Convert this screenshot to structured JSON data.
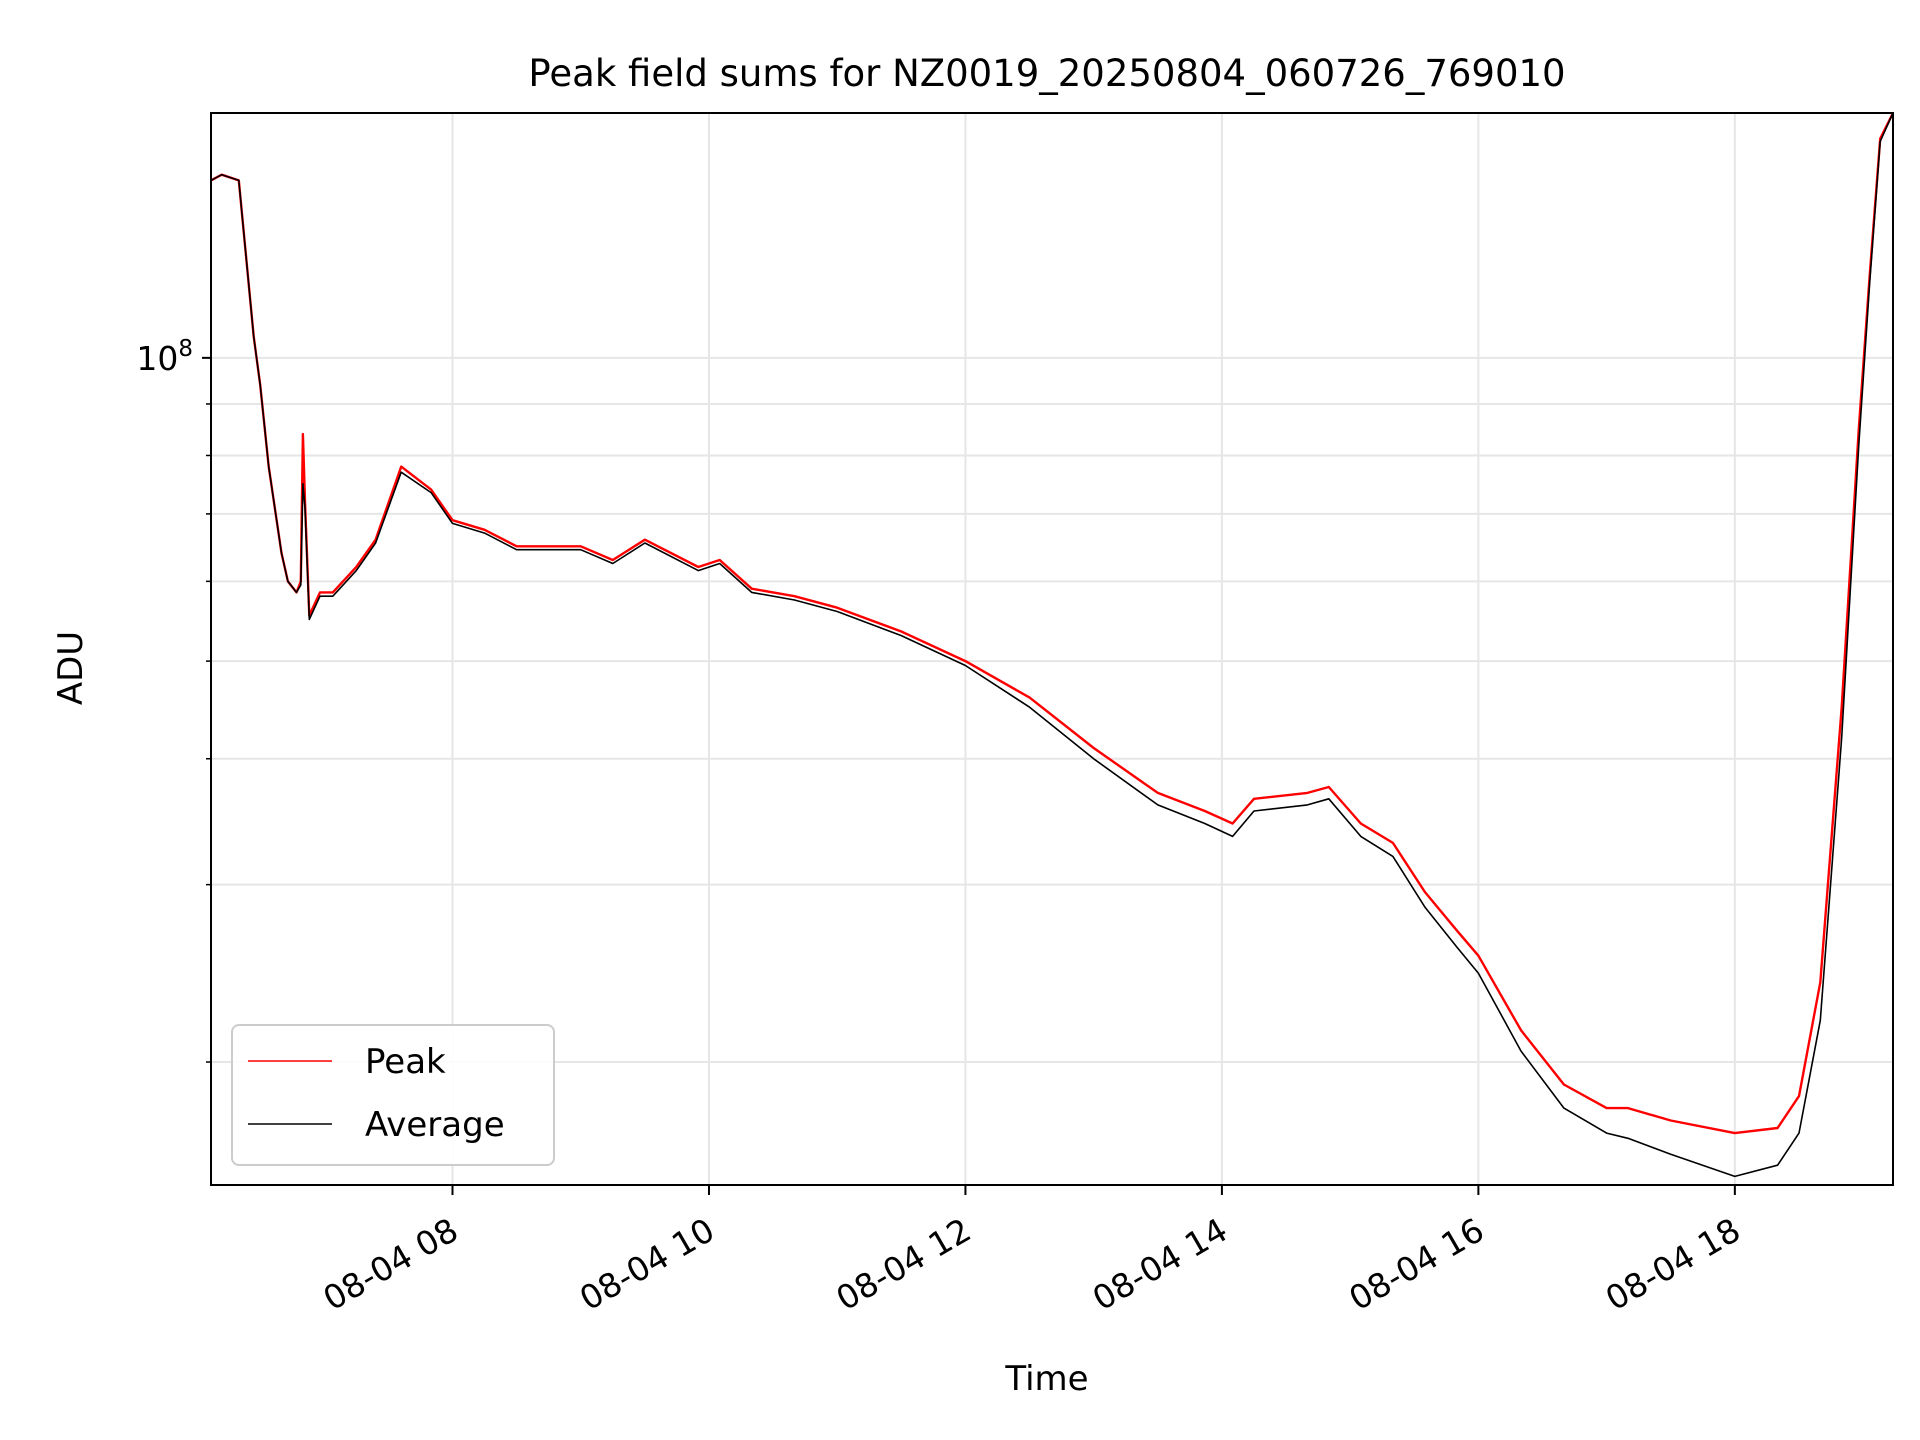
{
  "chart_data": {
    "type": "line",
    "title": "Peak field sums for NZ0019_20250804_060726_769010",
    "xlabel": "Time",
    "ylabel": "ADU",
    "yscale": "log",
    "grid": true,
    "legend_position": "lower-left",
    "x_ticks": [
      "08-04 08",
      "08-04 10",
      "08-04 12",
      "08-04 14",
      "08-04 16",
      "08-04 18"
    ],
    "y_major_tick": "10^8",
    "xlim": [
      "2025-08-04 06:07",
      "2025-08-04 19:14"
    ],
    "ylim": [
      15100000,
      175000000
    ],
    "series": [
      {
        "name": "Peak",
        "color": "#ff0000",
        "points": [
          [
            "2025-08-04 06:07",
            150000000
          ],
          [
            "2025-08-04 06:12",
            152000000
          ],
          [
            "2025-08-04 06:20",
            150000000
          ],
          [
            "2025-08-04 06:27",
            105000000
          ],
          [
            "2025-08-04 06:30",
            94000000
          ],
          [
            "2025-08-04 06:34",
            78000000
          ],
          [
            "2025-08-04 06:40",
            64000000
          ],
          [
            "2025-08-04 06:43",
            60000000
          ],
          [
            "2025-08-04 06:47",
            58500000
          ],
          [
            "2025-08-04 06:49",
            60000000
          ],
          [
            "2025-08-04 06:50",
            84000000
          ],
          [
            "2025-08-04 06:51",
            72000000
          ],
          [
            "2025-08-04 06:53",
            55500000
          ],
          [
            "2025-08-04 06:58",
            58500000
          ],
          [
            "2025-08-04 07:04",
            58500000
          ],
          [
            "2025-08-04 07:15",
            62000000
          ],
          [
            "2025-08-04 07:24",
            66000000
          ],
          [
            "2025-08-04 07:36",
            78000000
          ],
          [
            "2025-08-04 07:50",
            74000000
          ],
          [
            "2025-08-04 08:00",
            69000000
          ],
          [
            "2025-08-04 08:15",
            67500000
          ],
          [
            "2025-08-04 08:30",
            65000000
          ],
          [
            "2025-08-04 09:00",
            65000000
          ],
          [
            "2025-08-04 09:15",
            63000000
          ],
          [
            "2025-08-04 09:30",
            66000000
          ],
          [
            "2025-08-04 09:55",
            62000000
          ],
          [
            "2025-08-04 10:05",
            63000000
          ],
          [
            "2025-08-04 10:20",
            59000000
          ],
          [
            "2025-08-04 10:40",
            58000000
          ],
          [
            "2025-08-04 11:00",
            56500000
          ],
          [
            "2025-08-04 11:30",
            53500000
          ],
          [
            "2025-08-04 12:00",
            50000000
          ],
          [
            "2025-08-04 12:30",
            46000000
          ],
          [
            "2025-08-04 13:00",
            41000000
          ],
          [
            "2025-08-04 13:30",
            37000000
          ],
          [
            "2025-08-04 13:52",
            35500000
          ],
          [
            "2025-08-04 14:05",
            34500000
          ],
          [
            "2025-08-04 14:15",
            36500000
          ],
          [
            "2025-08-04 14:40",
            37000000
          ],
          [
            "2025-08-04 14:50",
            37500000
          ],
          [
            "2025-08-04 15:05",
            34500000
          ],
          [
            "2025-08-04 15:20",
            33000000
          ],
          [
            "2025-08-04 15:35",
            29500000
          ],
          [
            "2025-08-04 15:50",
            27000000
          ],
          [
            "2025-08-04 16:00",
            25500000
          ],
          [
            "2025-08-04 16:20",
            21500000
          ],
          [
            "2025-08-04 16:40",
            19000000
          ],
          [
            "2025-08-04 17:00",
            18000000
          ],
          [
            "2025-08-04 17:10",
            18000000
          ],
          [
            "2025-08-04 17:30",
            17500000
          ],
          [
            "2025-08-04 18:00",
            17000000
          ],
          [
            "2025-08-04 18:20",
            17200000
          ],
          [
            "2025-08-04 18:30",
            18500000
          ],
          [
            "2025-08-04 18:40",
            24000000
          ],
          [
            "2025-08-04 18:50",
            45000000
          ],
          [
            "2025-08-04 18:58",
            85000000
          ],
          [
            "2025-08-04 19:03",
            120000000
          ],
          [
            "2025-08-04 19:08",
            165000000
          ],
          [
            "2025-08-04 19:14",
            175000000
          ]
        ]
      },
      {
        "name": "Average",
        "color": "#000000",
        "points": [
          [
            "2025-08-04 06:07",
            150000000
          ],
          [
            "2025-08-04 06:12",
            152000000
          ],
          [
            "2025-08-04 06:20",
            150000000
          ],
          [
            "2025-08-04 06:27",
            105000000
          ],
          [
            "2025-08-04 06:30",
            94000000
          ],
          [
            "2025-08-04 06:34",
            78000000
          ],
          [
            "2025-08-04 06:40",
            64000000
          ],
          [
            "2025-08-04 06:43",
            60000000
          ],
          [
            "2025-08-04 06:47",
            58500000
          ],
          [
            "2025-08-04 06:49",
            59500000
          ],
          [
            "2025-08-04 06:50",
            75000000
          ],
          [
            "2025-08-04 06:51",
            71000000
          ],
          [
            "2025-08-04 06:53",
            55000000
          ],
          [
            "2025-08-04 06:58",
            58000000
          ],
          [
            "2025-08-04 07:04",
            58000000
          ],
          [
            "2025-08-04 07:15",
            61500000
          ],
          [
            "2025-08-04 07:24",
            65500000
          ],
          [
            "2025-08-04 07:36",
            77000000
          ],
          [
            "2025-08-04 07:50",
            73500000
          ],
          [
            "2025-08-04 08:00",
            68500000
          ],
          [
            "2025-08-04 08:15",
            67000000
          ],
          [
            "2025-08-04 08:30",
            64500000
          ],
          [
            "2025-08-04 09:00",
            64500000
          ],
          [
            "2025-08-04 09:15",
            62500000
          ],
          [
            "2025-08-04 09:30",
            65500000
          ],
          [
            "2025-08-04 09:55",
            61500000
          ],
          [
            "2025-08-04 10:05",
            62500000
          ],
          [
            "2025-08-04 10:20",
            58500000
          ],
          [
            "2025-08-04 10:40",
            57500000
          ],
          [
            "2025-08-04 11:00",
            56000000
          ],
          [
            "2025-08-04 11:30",
            53000000
          ],
          [
            "2025-08-04 12:00",
            49500000
          ],
          [
            "2025-08-04 12:30",
            45000000
          ],
          [
            "2025-08-04 13:00",
            40000000
          ],
          [
            "2025-08-04 13:30",
            36000000
          ],
          [
            "2025-08-04 13:52",
            34500000
          ],
          [
            "2025-08-04 14:05",
            33500000
          ],
          [
            "2025-08-04 14:15",
            35500000
          ],
          [
            "2025-08-04 14:40",
            36000000
          ],
          [
            "2025-08-04 14:50",
            36500000
          ],
          [
            "2025-08-04 15:05",
            33500000
          ],
          [
            "2025-08-04 15:20",
            32000000
          ],
          [
            "2025-08-04 15:35",
            28500000
          ],
          [
            "2025-08-04 15:50",
            26000000
          ],
          [
            "2025-08-04 16:00",
            24500000
          ],
          [
            "2025-08-04 16:20",
            20500000
          ],
          [
            "2025-08-04 16:40",
            18000000
          ],
          [
            "2025-08-04 17:00",
            17000000
          ],
          [
            "2025-08-04 17:10",
            16800000
          ],
          [
            "2025-08-04 17:30",
            16200000
          ],
          [
            "2025-08-04 18:00",
            15400000
          ],
          [
            "2025-08-04 18:20",
            15800000
          ],
          [
            "2025-08-04 18:30",
            17000000
          ],
          [
            "2025-08-04 18:40",
            22000000
          ],
          [
            "2025-08-04 18:50",
            42000000
          ],
          [
            "2025-08-04 18:58",
            82000000
          ],
          [
            "2025-08-04 19:03",
            118000000
          ],
          [
            "2025-08-04 19:08",
            164000000
          ],
          [
            "2025-08-04 19:14",
            175000000
          ]
        ]
      }
    ]
  }
}
